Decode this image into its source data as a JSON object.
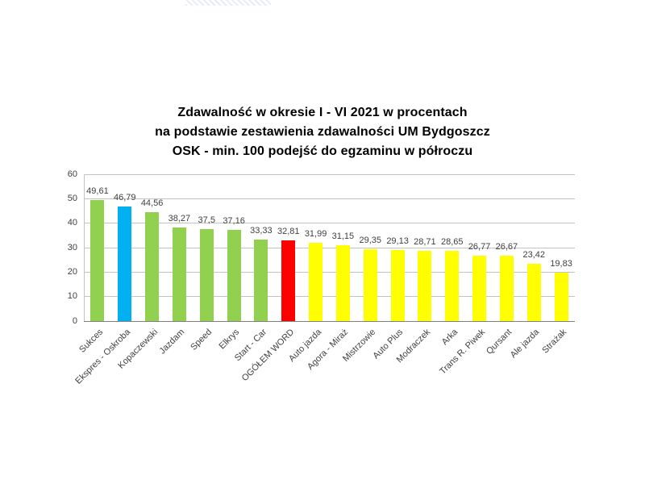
{
  "title": {
    "line1": "Zdawalność w okresie I - VI 2021 w procentach",
    "line2": "na podstawie zestawienia zdawalności UM Bydgoszcz",
    "line3": "OSK - min. 100 podejść do egzaminu w półroczu"
  },
  "chart_data": {
    "type": "bar",
    "title": "Zdawalność w okresie I - VI 2021 w procentach na podstawie zestawienia zdawalności UM Bydgoszcz OSK - min. 100 podejść do egzaminu w półroczu",
    "categories": [
      "Sukces",
      "Ekspres - Oskroba",
      "Kopaczewski",
      "Jazdam",
      "Speed",
      "Elkrys",
      "Start - Car",
      "OGÓŁEM WORD",
      "Auto jazda",
      "Agora - Miraż",
      "Mistrzowie",
      "Auto Plus",
      "Modraczek",
      "Arka",
      "Trans R. Piwek",
      "Qursant",
      "Ale jazda",
      "Strażak"
    ],
    "values": [
      49.61,
      46.79,
      44.56,
      38.27,
      37.5,
      37.16,
      33.33,
      32.81,
      31.99,
      31.15,
      29.35,
      29.13,
      28.71,
      28.65,
      26.77,
      26.67,
      23.42,
      19.83
    ],
    "value_labels": [
      "49,61",
      "46,79",
      "44,56",
      "38,27",
      "37,5",
      "37,16",
      "33,33",
      "32,81",
      "31,99",
      "31,15",
      "29,35",
      "29,13",
      "28,71",
      "28,65",
      "26,77",
      "26,67",
      "23,42",
      "19,83"
    ],
    "bar_colors": [
      "#92D050",
      "#00B0F0",
      "#92D050",
      "#92D050",
      "#92D050",
      "#92D050",
      "#92D050",
      "#FF0000",
      "#FFFF00",
      "#FFFF00",
      "#FFFF00",
      "#FFFF00",
      "#FFFF00",
      "#FFFF00",
      "#FFFF00",
      "#FFFF00",
      "#FFFF00",
      "#FFFF00"
    ],
    "xlabel": "",
    "ylabel": "",
    "ylim": [
      0,
      60
    ],
    "yticks": [
      0,
      10,
      20,
      30,
      40,
      50,
      60
    ],
    "grid": true,
    "legend": "none"
  },
  "colors": {
    "bar_green": "#92D050",
    "bar_blue": "#00B0F0",
    "bar_red": "#FF0000",
    "bar_yellow": "#FFFF00",
    "gridline": "#C3C3C3",
    "axis_line": "#7F7F7F",
    "label_text": "#3F3F3F",
    "title_text": "#000000"
  }
}
